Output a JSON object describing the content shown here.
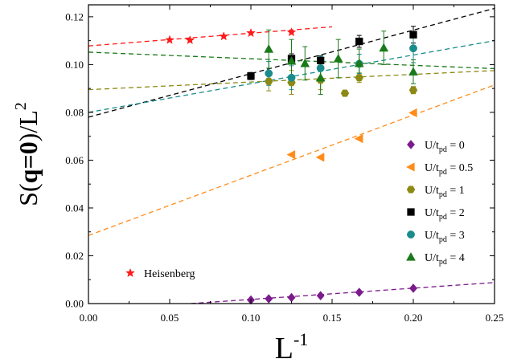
{
  "chart_data": {
    "type": "scatter",
    "title": "",
    "xlabel": {
      "base": "L",
      "sup": "-1"
    },
    "ylabel": {
      "pre": "S(",
      "bold": "q=0",
      "post": ")/L",
      "sup": "2"
    },
    "xlim": [
      0,
      0.25
    ],
    "ylim": [
      0,
      0.125
    ],
    "xticks": [
      "0.00",
      "0.05",
      "0.10",
      "0.15",
      "0.20",
      "0.25"
    ],
    "yticks": [
      "0.00",
      "0.02",
      "0.04",
      "0.06",
      "0.08",
      "0.10",
      "0.12"
    ],
    "legend_position": "bottom-right",
    "series": [
      {
        "label": {
          "pre": "U/t",
          "sub": "pd",
          "post": " = 0"
        },
        "color": "#7b1a8c",
        "marker": "diamond",
        "points": [
          [
            0.1,
            0.0015
          ],
          [
            0.111,
            0.002
          ],
          [
            0.125,
            0.0025
          ],
          [
            0.1429,
            0.0033
          ],
          [
            0.1667,
            0.0047
          ],
          [
            0.2,
            0.0064
          ]
        ],
        "fit": [
          [
            0.063,
            0.0
          ],
          [
            0.25,
            0.0088
          ]
        ]
      },
      {
        "label": {
          "pre": "U/t",
          "sub": "pd",
          "post": " = 0.5"
        },
        "color": "#ff8c1a",
        "marker": "triangle-left",
        "points": [
          [
            0.125,
            0.0623
          ],
          [
            0.1429,
            0.0612
          ],
          [
            0.1667,
            0.069
          ],
          [
            0.2,
            0.0798
          ]
        ],
        "fit": [
          [
            0.0,
            0.0285
          ],
          [
            0.25,
            0.0915
          ]
        ]
      },
      {
        "label": {
          "pre": "U/t",
          "sub": "pd",
          "post": " = 1"
        },
        "color": "#8c8a14",
        "marker": "hexagon",
        "points": [
          [
            0.111,
            0.093
          ],
          [
            0.125,
            0.0925
          ],
          [
            0.1429,
            0.0935
          ],
          [
            0.1579,
            0.088
          ],
          [
            0.1667,
            0.0945
          ],
          [
            0.2,
            0.0893
          ]
        ],
        "errors": [
          0.004,
          0.005,
          0.004,
          0.0,
          0.002,
          0.0015
        ],
        "fit": [
          [
            0.0,
            0.0895
          ],
          [
            0.25,
            0.0975
          ]
        ]
      },
      {
        "label": {
          "pre": "U/t",
          "sub": "pd",
          "post": " = 2"
        },
        "color": "#000000",
        "marker": "square",
        "points": [
          [
            0.1,
            0.0952
          ],
          [
            0.125,
            0.1025
          ],
          [
            0.1429,
            0.1017
          ],
          [
            0.1667,
            0.1097
          ],
          [
            0.2,
            0.1125
          ]
        ],
        "errors": [
          0.0015,
          0.002,
          0.002,
          0.0025,
          0.0035
        ],
        "fit": [
          [
            0.0,
            0.078
          ],
          [
            0.25,
            0.1235
          ]
        ]
      },
      {
        "label": {
          "pre": "U/t",
          "sub": "pd",
          "post": " = 3"
        },
        "color": "#1a8c8c",
        "marker": "circle",
        "points": [
          [
            0.111,
            0.0963
          ],
          [
            0.125,
            0.0945
          ],
          [
            0.1429,
            0.0985
          ],
          [
            0.1667,
            0.1003
          ],
          [
            0.2,
            0.1068
          ]
        ],
        "errors": [
          0.005,
          0.005,
          0.005,
          0.004,
          0.006
        ],
        "fit": [
          [
            0.0,
            0.08
          ],
          [
            0.25,
            0.11
          ]
        ]
      },
      {
        "label": {
          "pre": "U/t",
          "sub": "pd",
          "post": " = 4"
        },
        "color": "#1a7a1a",
        "marker": "triangle-up",
        "points": [
          [
            0.111,
            0.1065
          ],
          [
            0.125,
            0.1015
          ],
          [
            0.1333,
            0.1005
          ],
          [
            0.1429,
            0.0945
          ],
          [
            0.1538,
            0.1025
          ],
          [
            0.1667,
            0.1005
          ],
          [
            0.1818,
            0.107
          ],
          [
            0.2,
            0.097
          ]
        ],
        "errors": [
          0.008,
          0.009,
          0.007,
          0.007,
          0.008,
          0.006,
          0.007,
          0.005
        ],
        "fit": [
          [
            0.0,
            0.1052
          ],
          [
            0.25,
            0.0983
          ]
        ]
      },
      {
        "label": {
          "pre": "Heisenberg",
          "sub": "",
          "post": ""
        },
        "color": "#ff1a1a",
        "marker": "star",
        "points": [
          [
            0.05,
            0.1103
          ],
          [
            0.0625,
            0.1102
          ],
          [
            0.0833,
            0.1118
          ],
          [
            0.1,
            0.1132
          ],
          [
            0.125,
            0.1135
          ]
        ],
        "fit": [
          [
            0.0,
            0.1078
          ],
          [
            0.15,
            0.1158
          ]
        ]
      }
    ]
  }
}
